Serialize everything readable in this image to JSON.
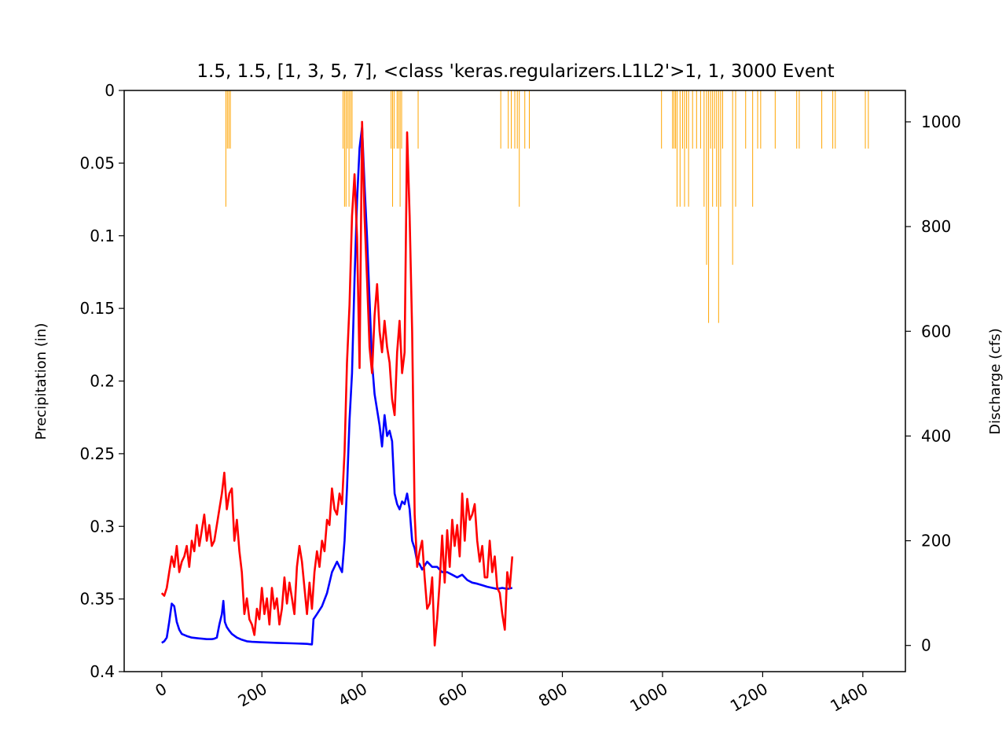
{
  "chart_data": {
    "type": "line",
    "title": "1.5, 1.5, [1, 3, 5, 7], <class 'keras.regularizers.L1L2'>1, 1, 3000 Event",
    "xlabel": "",
    "ylabel_left": "Precipitation (in)",
    "ylabel_right": "Discharge (cfs)",
    "xlim": [
      -75,
      1485
    ],
    "ylim_left": [
      0.4,
      0
    ],
    "ylim_right": [
      -50,
      1060
    ],
    "x_ticks": [
      0,
      200,
      400,
      600,
      800,
      1000,
      1200,
      1400
    ],
    "x_tick_labels": [
      "0",
      "200",
      "400",
      "600",
      "800",
      "1000",
      "1200",
      "1400"
    ],
    "y_left_ticks": [
      0,
      0.05,
      0.1,
      0.15,
      0.2,
      0.25,
      0.3,
      0.35,
      0.4
    ],
    "y_left_tick_labels": [
      "0",
      "0.05",
      "0.1",
      "0.15",
      "0.2",
      "0.25",
      "0.3",
      "0.35",
      "0.4"
    ],
    "y_right_ticks": [
      0,
      200,
      400,
      600,
      800,
      1000
    ],
    "y_right_tick_labels": [
      "0",
      "200",
      "400",
      "600",
      "800",
      "1000"
    ],
    "grid": false,
    "precipitation": {
      "color": "#FFA500",
      "x": [
        128,
        131,
        134,
        137,
        362,
        365,
        368,
        371,
        374,
        377,
        380,
        458,
        461,
        464,
        470,
        473,
        476,
        479,
        512,
        677,
        692,
        698,
        705,
        710,
        714,
        725,
        734,
        998,
        1020,
        1023,
        1026,
        1029,
        1035,
        1040,
        1044,
        1048,
        1052,
        1060,
        1068,
        1076,
        1083,
        1088,
        1092,
        1096,
        1100,
        1104,
        1108,
        1112,
        1116,
        1120,
        1140,
        1146,
        1166,
        1180,
        1190,
        1196,
        1225,
        1268,
        1273,
        1318,
        1340,
        1345,
        1405,
        1411
      ],
      "values": [
        0.08,
        0.04,
        0.04,
        0.04,
        0.04,
        0.08,
        0.08,
        0.04,
        0.08,
        0.04,
        0.04,
        0.04,
        0.08,
        0.04,
        0.04,
        0.04,
        0.08,
        0.04,
        0.04,
        0.04,
        0.04,
        0.04,
        0.04,
        0.04,
        0.08,
        0.04,
        0.04,
        0.04,
        0.04,
        0.04,
        0.04,
        0.08,
        0.08,
        0.04,
        0.08,
        0.04,
        0.08,
        0.04,
        0.04,
        0.04,
        0.08,
        0.12,
        0.16,
        0.04,
        0.08,
        0.04,
        0.08,
        0.16,
        0.08,
        0.04,
        0.12,
        0.08,
        0.04,
        0.08,
        0.04,
        0.04,
        0.04,
        0.04,
        0.04,
        0.04,
        0.04,
        0.04,
        0.04,
        0.04
      ]
    },
    "series": [
      {
        "color": "#0000FF",
        "x": [
          0,
          5,
          10,
          15,
          20,
          25,
          30,
          35,
          40,
          50,
          60,
          70,
          80,
          90,
          100,
          105,
          110,
          115,
          120,
          123,
          126,
          130,
          135,
          140,
          150,
          160,
          170,
          180,
          200,
          230,
          260,
          290,
          300,
          303,
          310,
          320,
          330,
          340,
          350,
          355,
          360,
          365,
          370,
          375,
          380,
          385,
          390,
          395,
          400,
          405,
          410,
          415,
          420,
          425,
          430,
          435,
          440,
          445,
          450,
          455,
          460,
          465,
          470,
          475,
          480,
          485,
          490,
          495,
          500,
          505,
          510,
          515,
          520,
          530,
          540,
          550,
          560,
          570,
          580,
          590,
          600,
          610,
          620,
          630,
          640,
          650,
          660,
          670,
          680,
          690,
          700
        ],
        "values": [
          5,
          8,
          15,
          45,
          80,
          75,
          45,
          30,
          22,
          18,
          15,
          14,
          13,
          12,
          12,
          13,
          15,
          40,
          60,
          85,
          45,
          35,
          28,
          22,
          15,
          11,
          8,
          7,
          6,
          5,
          4,
          3,
          2,
          50,
          60,
          75,
          100,
          140,
          160,
          150,
          140,
          200,
          300,
          430,
          520,
          700,
          850,
          950,
          990,
          880,
          780,
          660,
          540,
          480,
          450,
          420,
          380,
          440,
          400,
          410,
          390,
          290,
          270,
          260,
          275,
          270,
          290,
          260,
          200,
          185,
          160,
          155,
          145,
          160,
          150,
          150,
          140,
          140,
          135,
          130,
          135,
          125,
          120,
          118,
          115,
          112,
          110,
          108,
          110,
          108,
          110
        ]
      },
      {
        "color": "#FF0000",
        "x": [
          0,
          5,
          10,
          15,
          20,
          25,
          30,
          35,
          40,
          45,
          50,
          55,
          60,
          65,
          70,
          75,
          80,
          85,
          90,
          95,
          100,
          105,
          110,
          115,
          120,
          125,
          130,
          135,
          140,
          145,
          150,
          155,
          160,
          165,
          170,
          175,
          180,
          185,
          190,
          195,
          200,
          205,
          210,
          215,
          220,
          225,
          230,
          235,
          240,
          245,
          250,
          255,
          260,
          265,
          270,
          275,
          280,
          285,
          290,
          295,
          300,
          305,
          310,
          315,
          320,
          325,
          330,
          335,
          340,
          345,
          350,
          355,
          360,
          365,
          370,
          375,
          380,
          385,
          390,
          395,
          400,
          405,
          410,
          415,
          420,
          425,
          430,
          435,
          440,
          445,
          450,
          455,
          460,
          465,
          470,
          475,
          480,
          485,
          490,
          495,
          500,
          505,
          510,
          515,
          520,
          525,
          530,
          535,
          540,
          545,
          550,
          555,
          560,
          565,
          570,
          575,
          580,
          585,
          590,
          595,
          600,
          605,
          610,
          615,
          620,
          625,
          630,
          635,
          640,
          645,
          650,
          655,
          660,
          665,
          670,
          675,
          680,
          685,
          690,
          695,
          700
        ],
        "values": [
          100,
          95,
          110,
          140,
          170,
          150,
          190,
          140,
          160,
          170,
          190,
          150,
          200,
          180,
          230,
          190,
          220,
          250,
          200,
          230,
          190,
          200,
          230,
          260,
          290,
          330,
          260,
          290,
          300,
          200,
          240,
          180,
          140,
          60,
          90,
          50,
          40,
          20,
          70,
          50,
          110,
          60,
          90,
          40,
          110,
          70,
          90,
          40,
          70,
          130,
          80,
          120,
          90,
          60,
          150,
          190,
          160,
          110,
          60,
          120,
          70,
          140,
          180,
          150,
          200,
          180,
          240,
          230,
          300,
          260,
          250,
          290,
          270,
          370,
          540,
          650,
          820,
          900,
          780,
          530,
          1000,
          820,
          700,
          570,
          520,
          630,
          690,
          600,
          560,
          620,
          570,
          540,
          470,
          440,
          560,
          620,
          520,
          560,
          980,
          820,
          600,
          250,
          150,
          180,
          200,
          130,
          70,
          80,
          130,
          0,
          50,
          120,
          210,
          120,
          220,
          150,
          240,
          190,
          230,
          170,
          290,
          200,
          280,
          240,
          250,
          270,
          200,
          160,
          190,
          130,
          130,
          200,
          140,
          170,
          110,
          100,
          60,
          30,
          140,
          110,
          170
        ]
      }
    ]
  }
}
